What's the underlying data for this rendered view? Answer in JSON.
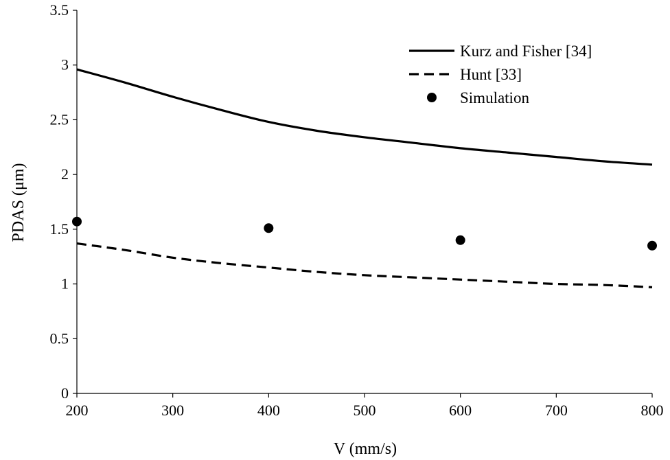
{
  "chart_data": {
    "type": "line",
    "title": "",
    "xlabel": "V (mm/s)",
    "ylabel": "PDAS (μm)",
    "xlim": [
      200,
      800
    ],
    "ylim": [
      0,
      3.5
    ],
    "x_ticks": [
      "200",
      "300",
      "400",
      "500",
      "600",
      "700",
      "800"
    ],
    "y_ticks": [
      "0",
      "0.5",
      "1",
      "1.5",
      "2",
      "2.5",
      "3",
      "3.5"
    ],
    "grid": false,
    "legend_position": "top-right",
    "series": [
      {
        "name": "Kurz and Fisher [34]",
        "style": "solid-line",
        "color": "#000000",
        "x": [
          200,
          250,
          300,
          350,
          400,
          450,
          500,
          550,
          600,
          650,
          700,
          750,
          800
        ],
        "y": [
          2.96,
          2.84,
          2.71,
          2.59,
          2.48,
          2.4,
          2.34,
          2.29,
          2.24,
          2.2,
          2.16,
          2.12,
          2.09
        ]
      },
      {
        "name": "Hunt [33]",
        "style": "dashed-line",
        "color": "#000000",
        "x": [
          200,
          250,
          300,
          350,
          400,
          450,
          500,
          550,
          600,
          650,
          700,
          750,
          800
        ],
        "y": [
          1.37,
          1.31,
          1.24,
          1.19,
          1.15,
          1.11,
          1.08,
          1.06,
          1.04,
          1.02,
          1.0,
          0.99,
          0.97
        ]
      },
      {
        "name": "Simulation",
        "style": "markers",
        "color": "#000000",
        "x": [
          200,
          400,
          600,
          800
        ],
        "y": [
          1.57,
          1.51,
          1.4,
          1.35
        ]
      }
    ]
  }
}
